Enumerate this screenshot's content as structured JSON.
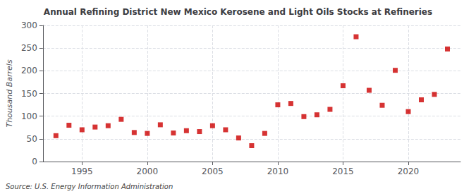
{
  "chart_data": {
    "type": "scatter",
    "title": "Annual Refining District New Mexico Kerosene and Light Oils Stocks at Refineries",
    "y_label": "Thousand Barrels",
    "annotation": "Source: U.S. Energy Information Administration",
    "x": [
      1993,
      1994,
      1995,
      1996,
      1997,
      1998,
      1999,
      2000,
      2001,
      2002,
      2003,
      2004,
      2005,
      2006,
      2007,
      2008,
      2009,
      2010,
      2011,
      2012,
      2013,
      2014,
      2015,
      2016,
      2017,
      2018,
      2019,
      2020,
      2021,
      2022,
      2023
    ],
    "values": [
      57,
      80,
      70,
      76,
      79,
      93,
      64,
      62,
      81,
      63,
      68,
      66,
      79,
      70,
      52,
      35,
      62,
      125,
      128,
      99,
      103,
      115,
      167,
      275,
      157,
      124,
      201,
      110,
      136,
      148,
      248
    ],
    "color": "#cc0000",
    "marker": "square",
    "xlim": [
      1992,
      2024
    ],
    "xticks": [
      1995,
      2000,
      2005,
      2010,
      2015,
      2020
    ],
    "ylim": [
      0,
      300
    ],
    "yticks": [
      0,
      50,
      100,
      150,
      200,
      250,
      300
    ],
    "grid": true
  }
}
